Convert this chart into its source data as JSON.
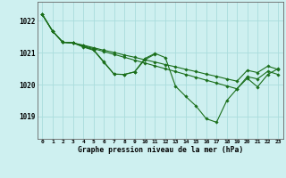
{
  "title": "Graphe pression niveau de la mer (hPa)",
  "hours": [
    0,
    1,
    2,
    3,
    4,
    5,
    6,
    7,
    8,
    9,
    10,
    11,
    12,
    13,
    14,
    15,
    16,
    17,
    18,
    19,
    20,
    21,
    22,
    23
  ],
  "ylim": [
    1018.3,
    1022.6
  ],
  "yticks": [
    1019,
    1020,
    1021,
    1022
  ],
  "background_color": "#cef0f0",
  "grid_color": "#aadcdc",
  "line_color": "#1a6e1a",
  "line1_y": [
    1022.2,
    1021.68,
    1021.33,
    1021.31,
    1021.24,
    1021.16,
    1021.08,
    1021.01,
    1020.93,
    1020.86,
    1020.78,
    1020.71,
    1020.63,
    1020.56,
    1020.48,
    1020.41,
    1020.33,
    1020.26,
    1020.18,
    1020.11,
    1020.45,
    1020.38,
    1020.58,
    1020.48
  ],
  "line2_y": [
    1022.2,
    1021.68,
    1021.33,
    1021.31,
    1021.22,
    1021.13,
    1021.04,
    1020.95,
    1020.86,
    1020.77,
    1020.68,
    1020.59,
    1020.5,
    1020.41,
    1020.32,
    1020.23,
    1020.14,
    1020.05,
    1019.96,
    1019.87,
    1020.25,
    1020.18,
    1020.42,
    1020.32
  ],
  "line3_x": [
    0,
    1,
    2,
    3,
    4,
    5,
    6,
    7,
    8,
    9,
    10,
    11
  ],
  "line3_y": [
    1022.2,
    1021.68,
    1021.33,
    1021.31,
    1021.2,
    1021.1,
    1020.72,
    1020.33,
    1020.32,
    1020.4,
    1020.78,
    1020.96
  ],
  "line4_y": [
    1022.2,
    1021.68,
    1021.33,
    1021.31,
    1021.18,
    1021.08,
    1020.7,
    1020.33,
    1020.32,
    1020.4,
    1020.82,
    1020.98,
    1020.85,
    1019.95,
    1019.63,
    1019.33,
    1018.93,
    1018.82,
    1019.5,
    1019.87,
    1020.2,
    1019.93,
    1020.32,
    1020.5
  ]
}
